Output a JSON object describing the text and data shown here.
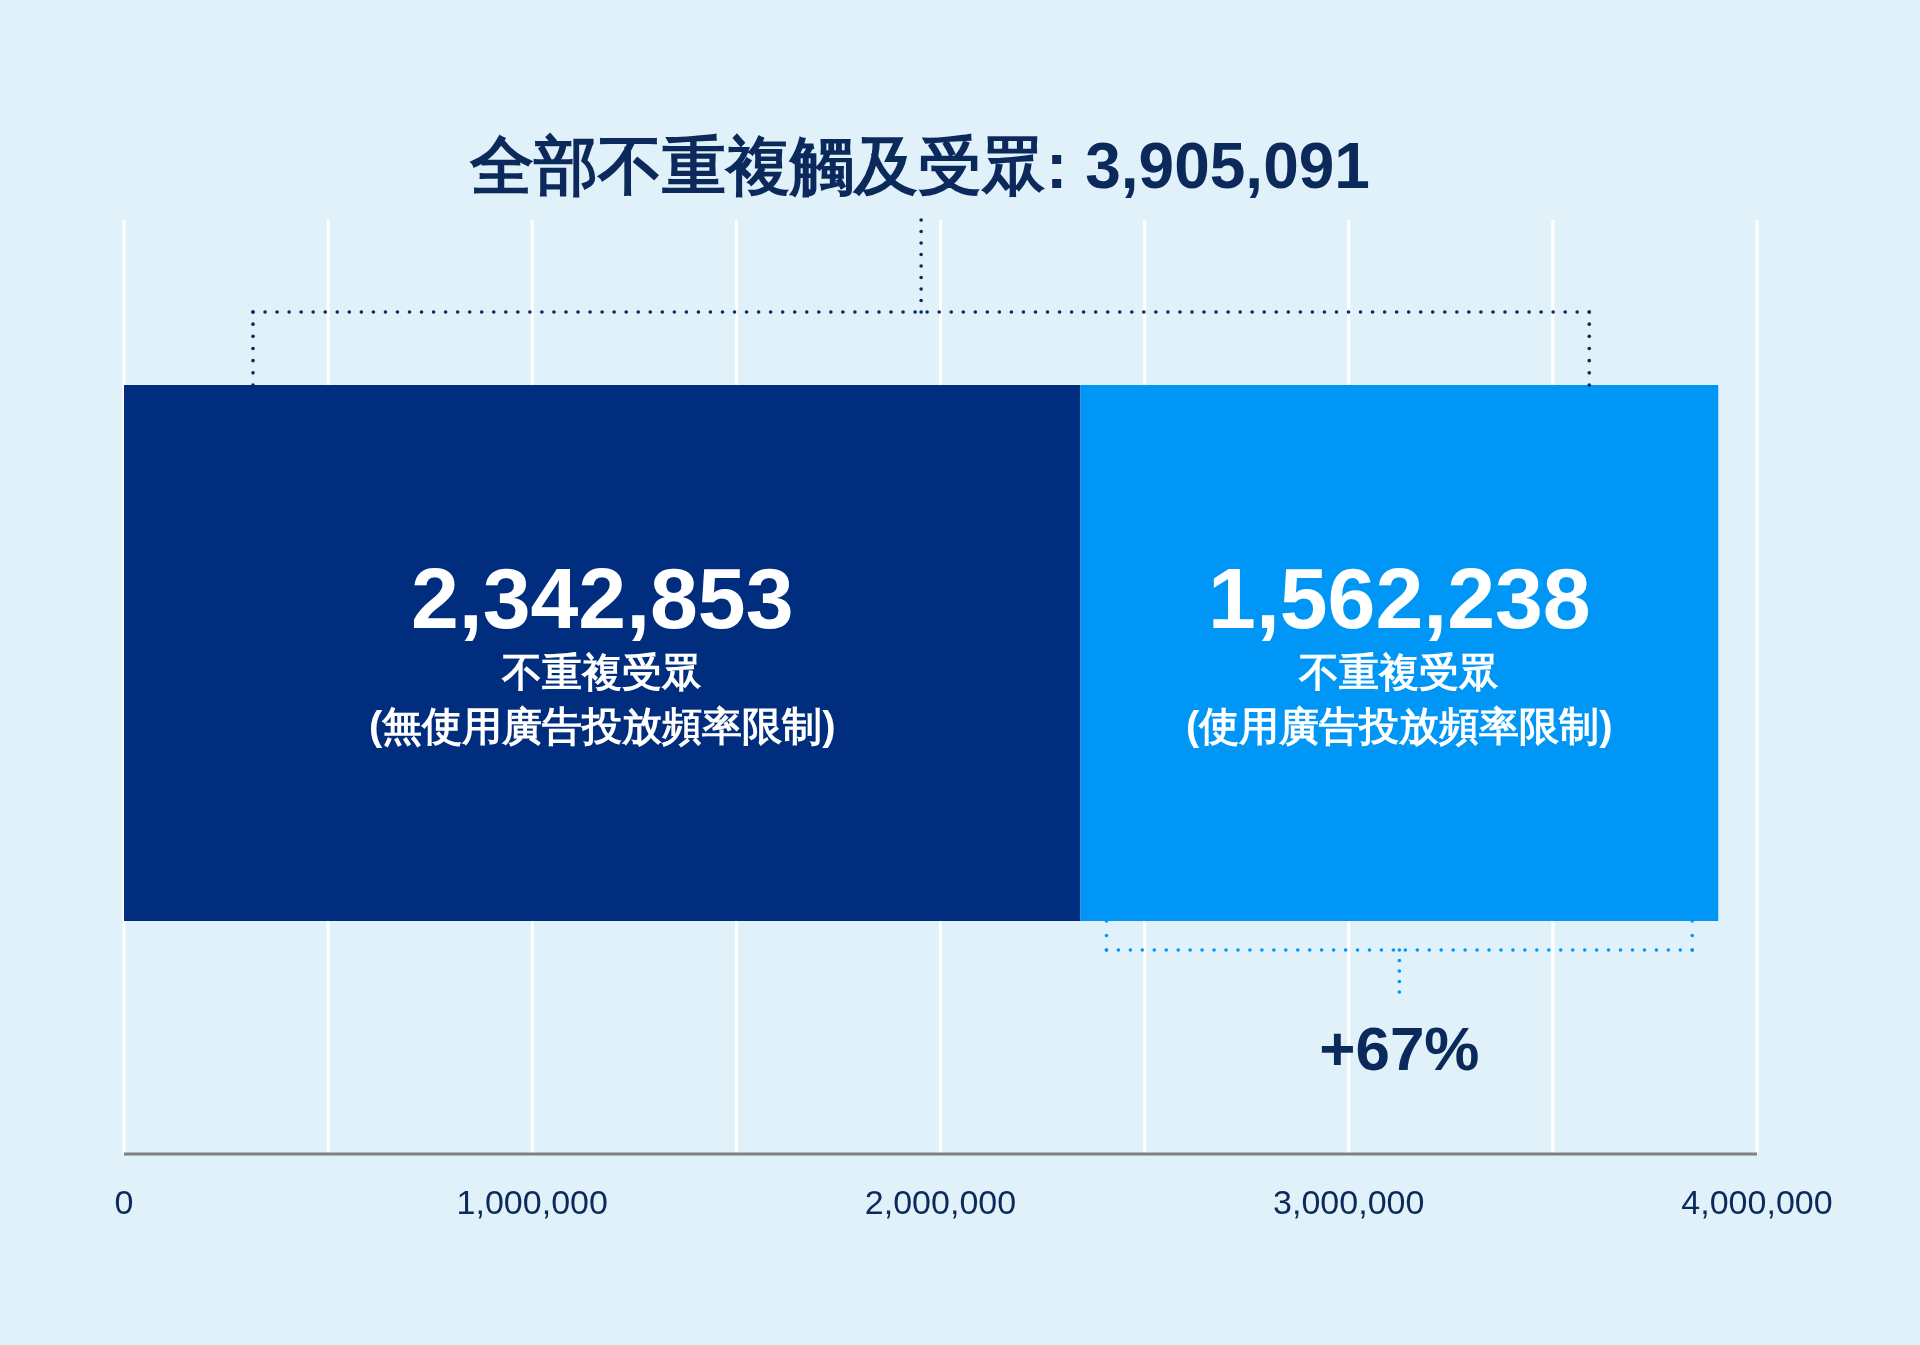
{
  "chart_data": {
    "type": "bar",
    "orientation": "horizontal",
    "stacked": true,
    "title": "全部不重複觸及受眾: 3,905,091",
    "categories": [
      null
    ],
    "series": [
      {
        "name": "不重複受眾 (無使用廣告投放頻率限制)",
        "color": "#002d7e",
        "values": [
          2342853
        ],
        "value_labels": [
          "2,342,853"
        ]
      },
      {
        "name": "不重複受眾 (使用廣告投放頻率限制)",
        "color": "#0096f5",
        "values": [
          1562238
        ],
        "value_labels": [
          "1,562,238"
        ]
      }
    ],
    "xlim": [
      0,
      4000000
    ],
    "xticks": [
      0,
      {
        "value": 500000,
        "label": null
      },
      {
        "value": 1000000,
        "label": "1,000,000"
      },
      {
        "value": 1500000,
        "label": null
      },
      {
        "value": 2000000,
        "label": "2,000,000"
      },
      {
        "value": 2500000,
        "label": null
      },
      {
        "value": 3000000,
        "label": "3,000,000"
      },
      {
        "value": 3500000,
        "label": null
      },
      {
        "value": 4000000,
        "label": "4,000,000"
      }
    ],
    "grid": "x",
    "tick_labels": "x",
    "annotations": [
      "+67%"
    ]
  }
}
